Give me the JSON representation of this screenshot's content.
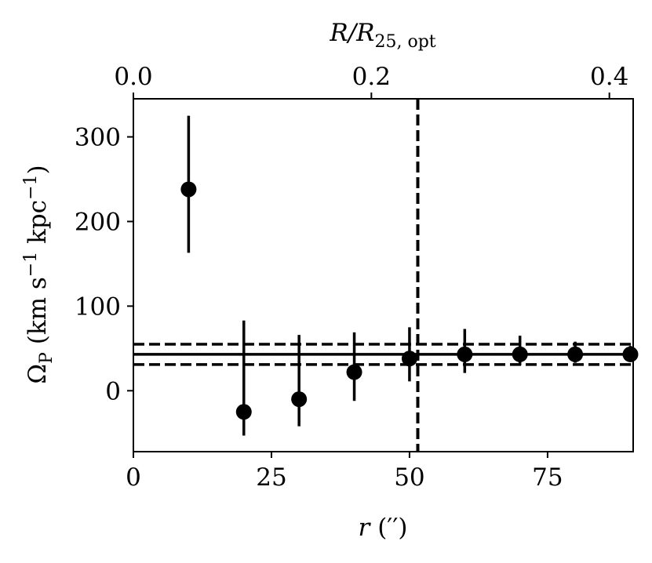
{
  "chart_data": {
    "type": "scatter",
    "title": "",
    "xlabel": {
      "symbol": "r",
      "unit": " (′′)"
    },
    "ylabel": {
      "symbol": "Ω",
      "sub": "P",
      "unit_a": " (km s",
      "sup_a": "−1",
      "unit_b": " kpc",
      "sup_b": "−1",
      "close": ")"
    },
    "top_xlabel": {
      "symbol": "R",
      "mid": "/R",
      "sub": "25, opt"
    },
    "xlim": [
      0,
      90.5
    ],
    "ylim": [
      -72,
      345
    ],
    "xticks": [
      0,
      25,
      50,
      75
    ],
    "yticks": [
      0,
      100,
      200,
      300
    ],
    "top_xlim": [
      0,
      0.42
    ],
    "top_xticks": [
      {
        "value": 0.0,
        "label": "0.0"
      },
      {
        "value": 0.2,
        "label": "0.2"
      },
      {
        "value": 0.4,
        "label": "0.4"
      }
    ],
    "points": [
      {
        "x": 10,
        "y": 238,
        "yerr": [
          75,
          87
        ]
      },
      {
        "x": 20,
        "y": -25,
        "yerr": [
          28,
          108
        ]
      },
      {
        "x": 30,
        "y": -10,
        "yerr": [
          32,
          76
        ]
      },
      {
        "x": 40,
        "y": 22,
        "yerr": [
          34,
          47
        ]
      },
      {
        "x": 50,
        "y": 38,
        "yerr": [
          27,
          37
        ]
      },
      {
        "x": 60,
        "y": 43,
        "yerr": [
          22,
          30
        ]
      },
      {
        "x": 70,
        "y": 43,
        "yerr": [
          13,
          22
        ]
      },
      {
        "x": 80,
        "y": 43,
        "yerr": [
          10,
          15
        ]
      },
      {
        "x": 90,
        "y": 43,
        "yerr": [
          8,
          10
        ]
      }
    ],
    "hlines": [
      {
        "y": 43,
        "style": "solid"
      },
      {
        "y": 55,
        "style": "dashed"
      },
      {
        "y": 31,
        "style": "dashed"
      }
    ],
    "vline": {
      "x": 51.5,
      "style": "dashed"
    },
    "grid": false,
    "colors": {
      "marker": "#000000",
      "line": "#000000"
    }
  }
}
